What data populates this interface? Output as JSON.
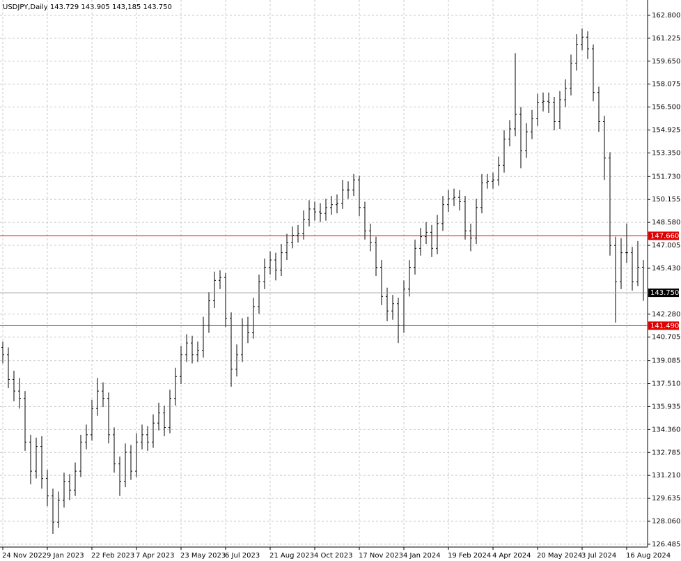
{
  "chart_data": {
    "type": "ohlc",
    "title": "USDJPY,Daily  143.729 143.905 143,185 143.750",
    "color": "#000000",
    "categories": [
      "24 Nov 2022",
      null,
      null,
      null,
      null,
      null,
      null,
      null,
      "9 Jan 2023",
      null,
      null,
      null,
      null,
      null,
      null,
      null,
      "22 Feb 2023",
      null,
      null,
      null,
      null,
      null,
      null,
      null,
      "7 Apr 2023",
      null,
      null,
      null,
      null,
      null,
      null,
      null,
      "23 May 2023",
      null,
      null,
      null,
      null,
      null,
      null,
      null,
      "6 Jul 2023",
      null,
      null,
      null,
      null,
      null,
      null,
      null,
      "21 Aug 2023",
      null,
      null,
      null,
      null,
      null,
      null,
      null,
      "4 Oct 2023",
      null,
      null,
      null,
      null,
      null,
      null,
      null,
      "17 Nov 2023",
      null,
      null,
      null,
      null,
      null,
      null,
      null,
      "4 Jan 2024",
      null,
      null,
      null,
      null,
      null,
      null,
      null,
      "19 Feb 2024",
      null,
      null,
      null,
      null,
      null,
      null,
      null,
      "4 Apr 2024",
      null,
      null,
      null,
      null,
      null,
      null,
      null,
      "20 May 2024",
      null,
      null,
      null,
      null,
      null,
      null,
      null,
      "3 Jul 2024",
      null,
      null,
      null,
      null,
      null,
      null,
      null,
      "16 Aug 2024",
      null,
      null,
      null
    ],
    "open": [
      140.0,
      139.5,
      137.8,
      137.0,
      136.5,
      133.5,
      131.5,
      133.2,
      131.0,
      129.8,
      128.0,
      129.5,
      130.8,
      130.2,
      131.5,
      133.5,
      134.0,
      135.8,
      137.0,
      136.5,
      134.0,
      132.0,
      130.8,
      132.8,
      131.5,
      133.5,
      134.0,
      133.5,
      134.8,
      135.5,
      134.5,
      136.5,
      138.0,
      139.5,
      140.3,
      139.5,
      139.8,
      141.5,
      143.2,
      144.6,
      144.8,
      142.0,
      138.5,
      139.5,
      141.5,
      141.0,
      142.8,
      144.5,
      145.5,
      146.0,
      145.3,
      146.5,
      147.2,
      147.7,
      147.8,
      148.8,
      149.5,
      149.3,
      149.2,
      149.6,
      149.8,
      149.9,
      150.8,
      150.8,
      151.5,
      149.6,
      148.0,
      147.2,
      145.5,
      143.5,
      142.5,
      143.0,
      141.5,
      144.0,
      145.5,
      146.8,
      147.6,
      147.9,
      146.8,
      148.5,
      149.8,
      150.2,
      150.3,
      150.0,
      148.0,
      147.5,
      149.6,
      151.3,
      151.4,
      151.5,
      152.5,
      154.3,
      155.0,
      156.0,
      153.5,
      154.8,
      155.7,
      156.8,
      156.9,
      156.8,
      155.5,
      157.0,
      157.8,
      159.5,
      160.8,
      161.3,
      160.5,
      157.5,
      155.5,
      153.0,
      147.0,
      144.5,
      146.5,
      146.5,
      144.5,
      145.5
    ],
    "high": [
      140.4,
      140.0,
      138.4,
      137.9,
      137.0,
      134.0,
      133.8,
      133.9,
      131.6,
      130.3,
      130.1,
      131.4,
      131.3,
      132.1,
      134.0,
      134.7,
      136.4,
      137.9,
      137.6,
      136.9,
      134.5,
      132.5,
      133.4,
      133.3,
      134.1,
      134.7,
      134.6,
      135.4,
      136.2,
      136.0,
      137.1,
      138.6,
      140.1,
      140.9,
      140.8,
      140.4,
      142.1,
      143.8,
      145.2,
      145.3,
      145.1,
      142.4,
      140.2,
      142.0,
      142.1,
      143.4,
      145.0,
      146.1,
      146.6,
      146.5,
      147.1,
      147.8,
      148.3,
      148.4,
      149.4,
      150.1,
      150.0,
      149.9,
      150.2,
      150.4,
      150.5,
      151.5,
      151.4,
      151.9,
      151.8,
      150.0,
      148.5,
      147.6,
      146.0,
      144.1,
      143.6,
      143.4,
      144.6,
      146.0,
      147.4,
      148.2,
      148.6,
      148.4,
      149.1,
      150.4,
      150.8,
      150.9,
      150.8,
      150.4,
      148.5,
      150.2,
      151.9,
      151.9,
      152.0,
      153.1,
      154.9,
      155.6,
      160.2,
      156.5,
      155.4,
      156.3,
      157.4,
      157.5,
      157.5,
      157.2,
      157.6,
      158.4,
      160.1,
      161.5,
      161.9,
      161.7,
      160.8,
      157.9,
      155.9,
      153.4,
      147.6,
      147.5,
      148.5,
      146.9,
      147.3,
      146.0
    ],
    "low": [
      138.9,
      137.2,
      136.3,
      135.8,
      132.9,
      130.6,
      131.0,
      130.3,
      129.1,
      127.2,
      127.6,
      129.0,
      129.5,
      129.8,
      131.1,
      133.0,
      133.6,
      135.3,
      135.9,
      133.4,
      131.4,
      129.8,
      130.4,
      130.9,
      131.1,
      133.0,
      132.9,
      133.1,
      134.3,
      133.9,
      134.1,
      136.0,
      137.5,
      139.0,
      138.9,
      139.0,
      139.3,
      141.0,
      142.7,
      144.0,
      141.4,
      137.3,
      138.0,
      139.0,
      140.3,
      140.6,
      142.3,
      144.0,
      145.0,
      144.6,
      144.9,
      146.0,
      146.8,
      147.2,
      147.4,
      148.3,
      148.7,
      148.6,
      148.7,
      149.1,
      149.2,
      149.5,
      150.2,
      150.4,
      149.0,
      147.4,
      146.6,
      144.9,
      142.9,
      141.8,
      141.9,
      140.3,
      141.0,
      143.5,
      145.0,
      146.3,
      147.1,
      146.2,
      146.4,
      148.0,
      149.3,
      149.7,
      149.4,
      147.4,
      146.6,
      147.1,
      149.2,
      150.9,
      150.9,
      151.1,
      152.0,
      153.8,
      154.5,
      152.3,
      153.0,
      154.3,
      155.2,
      156.2,
      156.1,
      154.9,
      155.0,
      156.5,
      157.3,
      159.0,
      160.4,
      159.8,
      156.9,
      154.8,
      151.5,
      146.3,
      141.7,
      144.0,
      145.8,
      143.9,
      144.2,
      143.2
    ],
    "close": [
      139.5,
      137.8,
      137.0,
      136.5,
      133.5,
      131.5,
      133.2,
      131.0,
      129.8,
      128.0,
      129.5,
      130.8,
      130.2,
      131.5,
      133.5,
      134.0,
      135.8,
      137.0,
      136.5,
      134.0,
      132.0,
      130.8,
      132.8,
      131.5,
      133.5,
      134.0,
      133.5,
      134.8,
      135.5,
      134.5,
      136.5,
      138.0,
      139.5,
      140.3,
      139.5,
      139.8,
      141.5,
      143.2,
      144.6,
      144.8,
      142.0,
      138.5,
      139.5,
      141.5,
      141.0,
      142.8,
      144.5,
      145.5,
      146.0,
      145.3,
      146.5,
      147.2,
      147.7,
      147.8,
      148.8,
      149.5,
      149.3,
      149.2,
      149.6,
      149.8,
      149.9,
      150.8,
      150.8,
      151.5,
      149.6,
      148.0,
      147.2,
      145.5,
      143.5,
      142.5,
      143.0,
      141.5,
      144.0,
      145.5,
      146.8,
      147.6,
      147.9,
      146.8,
      148.5,
      149.8,
      150.2,
      150.3,
      150.0,
      148.0,
      147.5,
      149.6,
      151.3,
      151.4,
      151.5,
      152.5,
      154.3,
      155.0,
      156.0,
      153.5,
      154.8,
      155.7,
      156.8,
      156.9,
      156.8,
      155.5,
      157.0,
      157.8,
      159.5,
      160.8,
      161.3,
      160.5,
      157.5,
      155.5,
      153.0,
      147.0,
      144.5,
      146.5,
      146.5,
      144.5,
      145.5,
      143.75
    ],
    "ylim": [
      126.29,
      163.85
    ],
    "yticks": [
      {
        "value": 162.8,
        "label": "162.800"
      },
      {
        "value": 161.225,
        "label": "161.225"
      },
      {
        "value": 159.65,
        "label": "159.650"
      },
      {
        "value": 158.075,
        "label": "158.075"
      },
      {
        "value": 156.5,
        "label": "156.500"
      },
      {
        "value": 154.925,
        "label": "154.925"
      },
      {
        "value": 153.35,
        "label": "153.350"
      },
      {
        "value": 151.73,
        "label": "151.730"
      },
      {
        "value": 150.155,
        "label": "150.155"
      },
      {
        "value": 148.58,
        "label": "148.580"
      },
      {
        "value": 147.005,
        "label": "147.005"
      },
      {
        "value": 145.43,
        "label": "145.430"
      },
      {
        "value": 142.28,
        "label": "142.280"
      },
      {
        "value": 140.705,
        "label": "140.705"
      },
      {
        "value": 139.085,
        "label": "139.085"
      },
      {
        "value": 137.51,
        "label": "137.510"
      },
      {
        "value": 135.935,
        "label": "135.935"
      },
      {
        "value": 134.36,
        "label": "134.360"
      },
      {
        "value": 132.785,
        "label": "132.785"
      },
      {
        "value": 131.21,
        "label": "131.210"
      },
      {
        "value": 129.635,
        "label": "129.635"
      },
      {
        "value": 128.06,
        "label": "128.060"
      },
      {
        "value": 126.485,
        "label": "126.485"
      }
    ],
    "grid": true,
    "levels": [
      {
        "value": 147.66,
        "label": "147.660",
        "color": "#e00000"
      },
      {
        "value": 141.49,
        "label": "141.490",
        "color": "#e00000"
      }
    ],
    "current_price": {
      "value": 143.75,
      "label": "143.750",
      "color": "#a0a0a0"
    }
  }
}
